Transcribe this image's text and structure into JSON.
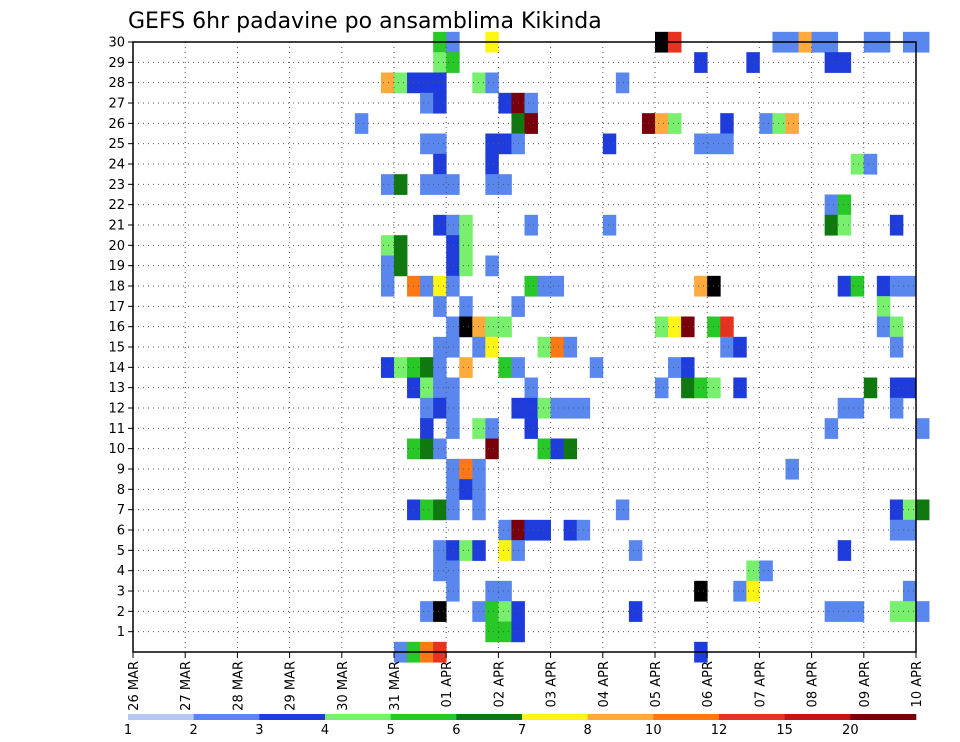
{
  "chart_data": {
    "type": "heatmap",
    "title": "GEFS 6hr padavine po ansamblima Kikinda",
    "x_ticks": [
      "26 MAR",
      "27 MAR",
      "28 MAR",
      "29 MAR",
      "30 MAR",
      "31 MAR",
      "01 APR",
      "02 APR",
      "03 APR",
      "04 APR",
      "05 APR",
      "06 APR",
      "07 APR",
      "08 APR",
      "09 APR",
      "10 APR"
    ],
    "x_start": "26 MAR",
    "x_step": "6hr",
    "y_ticks": [
      1,
      2,
      3,
      4,
      5,
      6,
      7,
      8,
      9,
      10,
      11,
      12,
      13,
      14,
      15,
      16,
      17,
      18,
      19,
      20,
      21,
      22,
      23,
      24,
      25,
      26,
      27,
      28,
      29,
      30
    ],
    "y_range": [
      0,
      30
    ],
    "grid": true,
    "colorbar": {
      "levels": [
        "1",
        "2",
        "3",
        "4",
        "5",
        "6",
        "7",
        "8",
        "10",
        "12",
        "15",
        "20"
      ],
      "colors": [
        "#b4c8f5",
        "#5a87ee",
        "#1e3cdc",
        "#78f06e",
        "#28c828",
        "#0f780f",
        "#fff514",
        "#ffaa3c",
        "#ff7814",
        "#e6321e",
        "#c8140f",
        "#78000a"
      ]
    },
    "colorbar_labels": [
      {
        "label": "1",
        "at": 0
      },
      {
        "label": "2",
        "at": 2
      },
      {
        "label": "3",
        "at": 4
      },
      {
        "label": "4",
        "at": 6
      },
      {
        "label": "5",
        "at": 8
      },
      {
        "label": "6",
        "at": 10
      },
      {
        "label": "7",
        "at": 12
      },
      {
        "label": "8",
        "at": 14
      },
      {
        "label": "10",
        "at": 16
      },
      {
        "label": "12",
        "at": 18
      },
      {
        "label": "15",
        "at": 20
      },
      {
        "label": "20",
        "at": 22
      }
    ],
    "cells": [
      [
        30,
        23,
        4
      ],
      [
        30,
        24,
        1
      ],
      [
        30,
        27,
        6
      ],
      [
        30,
        40,
        12
      ],
      [
        30,
        41,
        9
      ],
      [
        30,
        49,
        1
      ],
      [
        30,
        50,
        1
      ],
      [
        30,
        51,
        7
      ],
      [
        30,
        52,
        1
      ],
      [
        30,
        53,
        1
      ],
      [
        30,
        56,
        1
      ],
      [
        30,
        57,
        1
      ],
      [
        30,
        59,
        1
      ],
      [
        30,
        60,
        1
      ],
      [
        29,
        23,
        3
      ],
      [
        29,
        24,
        4
      ],
      [
        29,
        43,
        2
      ],
      [
        29,
        47,
        2
      ],
      [
        29,
        53,
        2
      ],
      [
        29,
        54,
        2
      ],
      [
        28,
        19,
        7
      ],
      [
        28,
        20,
        3
      ],
      [
        28,
        21,
        2
      ],
      [
        28,
        22,
        2
      ],
      [
        28,
        23,
        2
      ],
      [
        28,
        26,
        3
      ],
      [
        28,
        27,
        1
      ],
      [
        28,
        37,
        1
      ],
      [
        27,
        22,
        1
      ],
      [
        27,
        23,
        2
      ],
      [
        27,
        28,
        2
      ],
      [
        27,
        29,
        11
      ],
      [
        27,
        30,
        1
      ],
      [
        26,
        17,
        1
      ],
      [
        26,
        29,
        5
      ],
      [
        26,
        30,
        11
      ],
      [
        26,
        39,
        11
      ],
      [
        26,
        40,
        7
      ],
      [
        26,
        41,
        3
      ],
      [
        26,
        45,
        2
      ],
      [
        26,
        48,
        1
      ],
      [
        26,
        49,
        3
      ],
      [
        26,
        50,
        7
      ],
      [
        25,
        22,
        1
      ],
      [
        25,
        23,
        1
      ],
      [
        25,
        27,
        2
      ],
      [
        25,
        28,
        2
      ],
      [
        25,
        29,
        1
      ],
      [
        25,
        36,
        2
      ],
      [
        25,
        43,
        1
      ],
      [
        25,
        44,
        1
      ],
      [
        25,
        45,
        1
      ],
      [
        24,
        23,
        2
      ],
      [
        24,
        27,
        2
      ],
      [
        24,
        55,
        3
      ],
      [
        24,
        56,
        1
      ],
      [
        23,
        19,
        1
      ],
      [
        23,
        20,
        5
      ],
      [
        23,
        22,
        1
      ],
      [
        23,
        23,
        1
      ],
      [
        23,
        24,
        1
      ],
      [
        23,
        27,
        1
      ],
      [
        23,
        28,
        1
      ],
      [
        22,
        53,
        1
      ],
      [
        22,
        54,
        4
      ],
      [
        21,
        23,
        2
      ],
      [
        21,
        24,
        1
      ],
      [
        21,
        25,
        3
      ],
      [
        21,
        30,
        1
      ],
      [
        21,
        36,
        1
      ],
      [
        21,
        53,
        5
      ],
      [
        21,
        54,
        3
      ],
      [
        21,
        58,
        2
      ],
      [
        20,
        19,
        3
      ],
      [
        20,
        20,
        5
      ],
      [
        20,
        24,
        2
      ],
      [
        20,
        25,
        3
      ],
      [
        19,
        19,
        1
      ],
      [
        19,
        20,
        5
      ],
      [
        19,
        24,
        2
      ],
      [
        19,
        25,
        3
      ],
      [
        19,
        27,
        1
      ],
      [
        18,
        19,
        1
      ],
      [
        18,
        21,
        8
      ],
      [
        18,
        22,
        1
      ],
      [
        18,
        23,
        6
      ],
      [
        18,
        24,
        1
      ],
      [
        18,
        30,
        4
      ],
      [
        18,
        31,
        1
      ],
      [
        18,
        32,
        1
      ],
      [
        18,
        43,
        7
      ],
      [
        18,
        44,
        12
      ],
      [
        18,
        54,
        2
      ],
      [
        18,
        55,
        4
      ],
      [
        18,
        57,
        2
      ],
      [
        18,
        58,
        1
      ],
      [
        18,
        59,
        1
      ],
      [
        17,
        23,
        1
      ],
      [
        17,
        25,
        1
      ],
      [
        17,
        29,
        1
      ],
      [
        17,
        57,
        3
      ],
      [
        16,
        24,
        1
      ],
      [
        16,
        25,
        12
      ],
      [
        16,
        26,
        7
      ],
      [
        16,
        27,
        3
      ],
      [
        16,
        28,
        3
      ],
      [
        16,
        40,
        3
      ],
      [
        16,
        41,
        6
      ],
      [
        16,
        42,
        11
      ],
      [
        16,
        44,
        4
      ],
      [
        16,
        45,
        9
      ],
      [
        16,
        57,
        1
      ],
      [
        16,
        58,
        3
      ],
      [
        15,
        23,
        1
      ],
      [
        15,
        24,
        1
      ],
      [
        15,
        26,
        1
      ],
      [
        15,
        27,
        6
      ],
      [
        15,
        31,
        3
      ],
      [
        15,
        32,
        8
      ],
      [
        15,
        33,
        1
      ],
      [
        15,
        45,
        1
      ],
      [
        15,
        46,
        2
      ],
      [
        15,
        58,
        1
      ],
      [
        14,
        19,
        2
      ],
      [
        14,
        20,
        3
      ],
      [
        14,
        21,
        4
      ],
      [
        14,
        22,
        5
      ],
      [
        14,
        23,
        1
      ],
      [
        14,
        25,
        7
      ],
      [
        14,
        28,
        4
      ],
      [
        14,
        29,
        1
      ],
      [
        14,
        35,
        1
      ],
      [
        14,
        41,
        1
      ],
      [
        14,
        42,
        2
      ],
      [
        13,
        21,
        2
      ],
      [
        13,
        22,
        3
      ],
      [
        13,
        23,
        1
      ],
      [
        13,
        24,
        1
      ],
      [
        13,
        30,
        1
      ],
      [
        13,
        40,
        1
      ],
      [
        13,
        42,
        5
      ],
      [
        13,
        43,
        4
      ],
      [
        13,
        44,
        3
      ],
      [
        13,
        46,
        2
      ],
      [
        13,
        56,
        5
      ],
      [
        13,
        58,
        2
      ],
      [
        13,
        59,
        2
      ],
      [
        12,
        22,
        1
      ],
      [
        12,
        23,
        2
      ],
      [
        12,
        24,
        1
      ],
      [
        12,
        29,
        2
      ],
      [
        12,
        30,
        2
      ],
      [
        12,
        31,
        3
      ],
      [
        12,
        32,
        1
      ],
      [
        12,
        33,
        1
      ],
      [
        12,
        34,
        1
      ],
      [
        12,
        54,
        1
      ],
      [
        12,
        55,
        1
      ],
      [
        12,
        58,
        1
      ],
      [
        11,
        22,
        2
      ],
      [
        11,
        24,
        1
      ],
      [
        11,
        26,
        3
      ],
      [
        11,
        27,
        1
      ],
      [
        11,
        30,
        2
      ],
      [
        11,
        53,
        1
      ],
      [
        11,
        60,
        1
      ],
      [
        10,
        21,
        4
      ],
      [
        10,
        22,
        5
      ],
      [
        10,
        23,
        1
      ],
      [
        10,
        27,
        11
      ],
      [
        10,
        31,
        4
      ],
      [
        10,
        32,
        2
      ],
      [
        10,
        33,
        5
      ],
      [
        9,
        24,
        1
      ],
      [
        9,
        25,
        8
      ],
      [
        9,
        26,
        1
      ],
      [
        9,
        50,
        1
      ],
      [
        8,
        24,
        1
      ],
      [
        8,
        25,
        2
      ],
      [
        8,
        26,
        1
      ],
      [
        7,
        21,
        2
      ],
      [
        7,
        22,
        4
      ],
      [
        7,
        23,
        5
      ],
      [
        7,
        24,
        1
      ],
      [
        7,
        26,
        1
      ],
      [
        7,
        37,
        1
      ],
      [
        7,
        58,
        2
      ],
      [
        7,
        59,
        3
      ],
      [
        7,
        60,
        5
      ],
      [
        6,
        28,
        1
      ],
      [
        6,
        29,
        11
      ],
      [
        6,
        30,
        2
      ],
      [
        6,
        31,
        2
      ],
      [
        6,
        33,
        2
      ],
      [
        6,
        34,
        1
      ],
      [
        6,
        58,
        1
      ],
      [
        6,
        59,
        1
      ],
      [
        5,
        23,
        1
      ],
      [
        5,
        24,
        2
      ],
      [
        5,
        25,
        3
      ],
      [
        5,
        26,
        2
      ],
      [
        5,
        28,
        6
      ],
      [
        5,
        29,
        1
      ],
      [
        5,
        38,
        1
      ],
      [
        5,
        54,
        2
      ],
      [
        4,
        23,
        1
      ],
      [
        4,
        24,
        1
      ],
      [
        4,
        47,
        3
      ],
      [
        4,
        48,
        1
      ],
      [
        3,
        24,
        1
      ],
      [
        3,
        27,
        1
      ],
      [
        3,
        28,
        1
      ],
      [
        3,
        43,
        12
      ],
      [
        3,
        46,
        1
      ],
      [
        3,
        47,
        6
      ],
      [
        3,
        59,
        1
      ],
      [
        2,
        22,
        1
      ],
      [
        2,
        23,
        12
      ],
      [
        2,
        26,
        1
      ],
      [
        2,
        27,
        4
      ],
      [
        2,
        28,
        3
      ],
      [
        2,
        29,
        2
      ],
      [
        2,
        38,
        2
      ],
      [
        2,
        53,
        1
      ],
      [
        2,
        54,
        1
      ],
      [
        2,
        55,
        1
      ],
      [
        2,
        58,
        3
      ],
      [
        2,
        59,
        3
      ],
      [
        2,
        60,
        1
      ],
      [
        1,
        27,
        4
      ],
      [
        1,
        28,
        4
      ],
      [
        1,
        29,
        2
      ],
      [
        0,
        20,
        1
      ],
      [
        0,
        21,
        4
      ],
      [
        0,
        22,
        8
      ],
      [
        0,
        23,
        9
      ],
      [
        0,
        43,
        2
      ]
    ]
  }
}
